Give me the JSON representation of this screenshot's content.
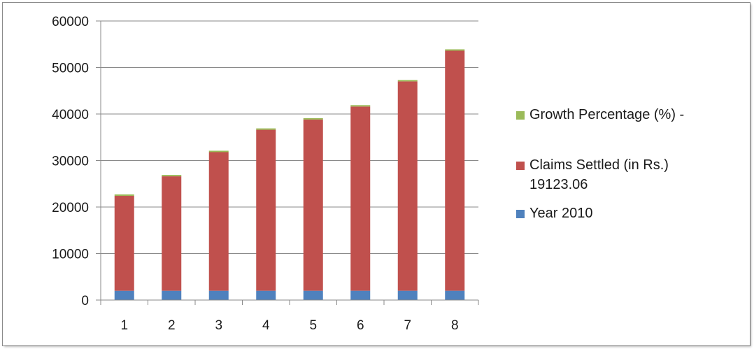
{
  "chart_data": {
    "type": "bar",
    "stacked": true,
    "categories": [
      "1",
      "2",
      "3",
      "4",
      "5",
      "6",
      "7",
      "8"
    ],
    "series": [
      {
        "name": "Year 2010",
        "color": "#4f81bd",
        "values": [
          2003,
          2004,
          2005,
          2006,
          2007,
          2008,
          2009,
          2010
        ]
      },
      {
        "name": "Claims Settled (in Rs.) 19123.06",
        "name_lines": [
          "Claims Settled (in Rs.)",
          "19123.06"
        ],
        "color": "#c0504d",
        "values": [
          20400,
          24600,
          29800,
          34600,
          36800,
          39600,
          45000,
          51600
        ]
      },
      {
        "name": "Growth Percentage (%) -",
        "color": "#9bbb59",
        "values": [
          20,
          20,
          20,
          20,
          20,
          20,
          20,
          20
        ]
      }
    ],
    "yticks": [
      "0",
      "10000",
      "20000",
      "30000",
      "40000",
      "50000",
      "60000"
    ],
    "ylim": [
      0,
      60000
    ],
    "grid": true,
    "legend": "right",
    "title": "",
    "xlabel": "",
    "ylabel": ""
  }
}
